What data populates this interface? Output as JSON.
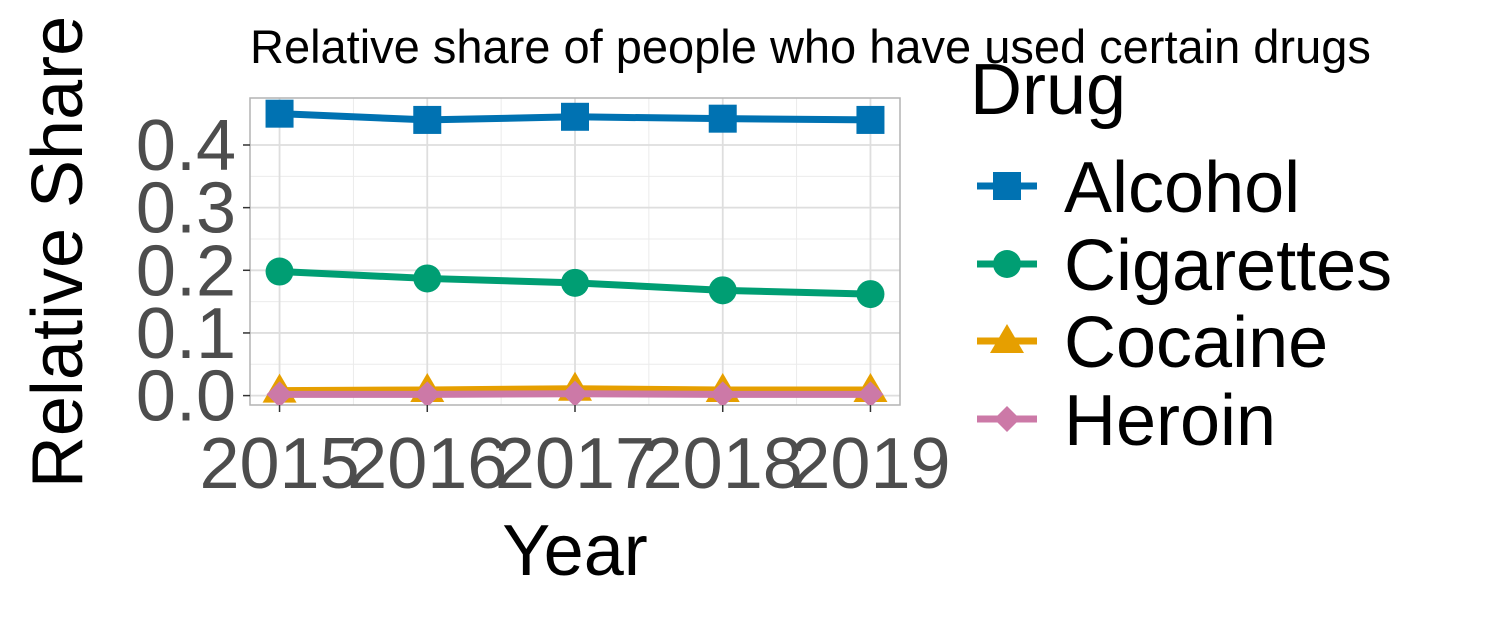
{
  "chart_data": {
    "type": "line",
    "title": "Relative share of people who have used certain drugs",
    "xlabel": "Year",
    "ylabel": "Relative Share",
    "x": [
      2015,
      2016,
      2017,
      2018,
      2019
    ],
    "x_tick_labels": [
      "2015",
      "2016",
      "2017",
      "2018",
      "2019"
    ],
    "xlim": [
      2014.8,
      2019.2
    ],
    "ylim": [
      -0.015,
      0.475
    ],
    "y_ticks": [
      0.0,
      0.1,
      0.2,
      0.3,
      0.4
    ],
    "y_tick_labels": [
      "0.0",
      "0.1",
      "0.2",
      "0.3",
      "0.4"
    ],
    "grid": true,
    "legend_title": "Drug",
    "legend_position": "right",
    "series": [
      {
        "name": "Alcohol",
        "values": [
          0.45,
          0.44,
          0.445,
          0.442,
          0.44
        ],
        "color": "#0072B2",
        "marker": "square"
      },
      {
        "name": "Cigarettes",
        "values": [
          0.198,
          0.187,
          0.18,
          0.168,
          0.162
        ],
        "color": "#009E73",
        "marker": "circle"
      },
      {
        "name": "Cocaine",
        "values": [
          0.008,
          0.009,
          0.011,
          0.009,
          0.009
        ],
        "color": "#E69F00",
        "marker": "triangle"
      },
      {
        "name": "Heroin",
        "values": [
          0.002,
          0.002,
          0.003,
          0.002,
          0.002
        ],
        "color": "#CC79A7",
        "marker": "diamond"
      }
    ]
  }
}
